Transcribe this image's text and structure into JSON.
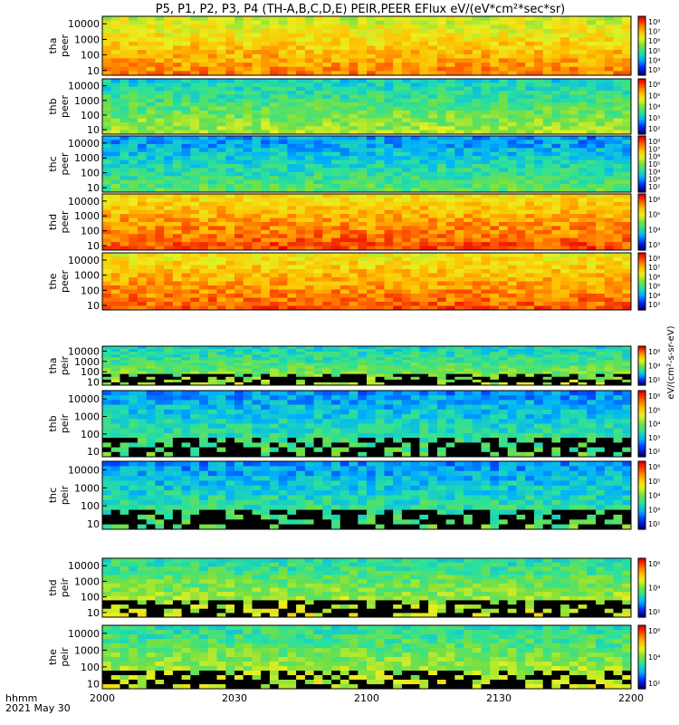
{
  "title": "P5, P1, P2, P3, P4 (TH-A,B,C,D,E) PEIR,PEER EFlux eV/(eV*cm²*sec*sr)",
  "xaxis": {
    "unit_label": "hhmm",
    "date_label": "2021 May 30",
    "ticks": [
      "2000",
      "2030",
      "2100",
      "2130",
      "2200"
    ]
  },
  "colors": {
    "colormap": [
      "#000080",
      "#0030ff",
      "#00b0ff",
      "#28e0a0",
      "#78e040",
      "#e8f020",
      "#ffc000",
      "#ff6000",
      "#e80000"
    ],
    "frame": "#000000"
  },
  "chart_data": [
    {
      "type": "heatmap",
      "probe": "tha",
      "species": "peer",
      "ylabel_line1": "tha",
      "ylabel_line2": "peer",
      "yticks": [
        "10000",
        "1000",
        "100",
        "10"
      ],
      "ylim": [
        5,
        30000
      ],
      "yscale": "log",
      "colorbar_ticks": [
        "10⁸",
        "10⁷",
        "10⁶",
        "10⁵",
        "10⁴",
        "10³"
      ],
      "colorbar_label": "eV/(cm²-s-sr-eV)",
      "low_energy_hot": 0.55,
      "high_energy_hot": 0.55,
      "dominant_level": 0.72
    },
    {
      "type": "heatmap",
      "probe": "thb",
      "species": "peer",
      "ylabel_line1": "thb",
      "ylabel_line2": "peer",
      "yticks": [
        "10000",
        "1000",
        "100",
        "10"
      ],
      "ylim": [
        5,
        30000
      ],
      "yscale": "log",
      "colorbar_ticks": [
        "10⁶",
        "10⁵",
        "10⁴",
        "10³",
        "10²"
      ],
      "colorbar_label": "eV/(cm²-s-sr-eV)",
      "dominant_level": 0.45
    },
    {
      "type": "heatmap",
      "probe": "thc",
      "species": "peer",
      "ylabel_line1": "thc",
      "ylabel_line2": "peer",
      "yticks": [
        "10000",
        "1000",
        "100",
        "10"
      ],
      "ylim": [
        5,
        30000
      ],
      "yscale": "log",
      "colorbar_ticks": [
        "10⁸",
        "10⁷",
        "10⁶",
        "10⁵",
        "10⁴",
        "10³",
        "10²"
      ],
      "colorbar_label": "eV/(cm²-s-sr-eV)",
      "dominant_level": 0.35
    },
    {
      "type": "heatmap",
      "probe": "thd",
      "species": "peer",
      "ylabel_line1": "thd",
      "ylabel_line2": "peer",
      "yticks": [
        "10000",
        "1000",
        "100",
        "10"
      ],
      "ylim": [
        5,
        30000
      ],
      "yscale": "log",
      "colorbar_ticks": [
        "10⁶",
        "10⁵",
        "10⁴",
        "10³"
      ],
      "colorbar_label": "eV/(cm²-s-sr-eV)",
      "dominant_level": 0.8
    },
    {
      "type": "heatmap",
      "probe": "the",
      "species": "peer",
      "ylabel_line1": "the",
      "ylabel_line2": "peer",
      "yticks": [
        "10000",
        "1000",
        "100",
        "10"
      ],
      "ylim": [
        5,
        30000
      ],
      "yscale": "log",
      "colorbar_ticks": [
        "10⁸",
        "10⁷",
        "10⁶",
        "10⁵",
        "10⁴",
        "10³"
      ],
      "colorbar_label": "eV/(cm²-s-sr-eV)",
      "dominant_level": 0.78
    },
    {
      "type": "heatmap",
      "probe": "tha",
      "species": "peir",
      "ylabel_line1": "tha",
      "ylabel_line2": "peir",
      "yticks": [
        "10000",
        "1000",
        "100",
        "10"
      ],
      "ylim": [
        5,
        30000
      ],
      "yscale": "log",
      "colorbar_ticks": [
        "10⁶",
        "10⁴",
        "10²"
      ],
      "colorbar_label": "eV/(cm²-s-sr-eV)",
      "dominant_level": 0.45
    },
    {
      "type": "heatmap",
      "probe": "thb",
      "species": "peir",
      "ylabel_line1": "thb",
      "ylabel_line2": "peir",
      "yticks": [
        "10000",
        "1000",
        "100",
        "10"
      ],
      "ylim": [
        5,
        30000
      ],
      "yscale": "log",
      "colorbar_ticks": [
        "10⁶",
        "10⁵",
        "10⁴",
        "10³",
        "10²"
      ],
      "colorbar_label": "eV/(cm²-s-sr-eV)",
      "dominant_level": 0.35
    },
    {
      "type": "heatmap",
      "probe": "thc",
      "species": "peir",
      "ylabel_line1": "thc",
      "ylabel_line2": "peir",
      "yticks": [
        "10000",
        "1000",
        "100",
        "10"
      ],
      "ylim": [
        5,
        30000
      ],
      "yscale": "log",
      "colorbar_ticks": [
        "10⁶",
        "10⁵",
        "10⁴",
        "10³",
        "10²"
      ],
      "colorbar_label": "eV/(cm²-s-sr-eV)",
      "dominant_level": 0.35
    },
    {
      "type": "heatmap",
      "probe": "thd",
      "species": "peir",
      "ylabel_line1": "thd",
      "ylabel_line2": "peir",
      "yticks": [
        "10000",
        "1000",
        "100",
        "10"
      ],
      "ylim": [
        5,
        30000
      ],
      "yscale": "log",
      "colorbar_ticks": [
        "10⁶",
        "10⁴",
        "10²"
      ],
      "colorbar_label": "eV/(cm²-s-sr-eV)",
      "dominant_level": 0.5
    },
    {
      "type": "heatmap",
      "probe": "the",
      "species": "peir",
      "ylabel_line1": "the",
      "ylabel_line2": "peir",
      "yticks": [
        "10000",
        "1000",
        "100",
        "10"
      ],
      "ylim": [
        5,
        30000
      ],
      "yscale": "log",
      "colorbar_ticks": [
        "10⁶",
        "10⁴",
        "10²"
      ],
      "colorbar_label": "eV/(cm²-s-sr-eV)",
      "dominant_level": 0.5
    }
  ]
}
